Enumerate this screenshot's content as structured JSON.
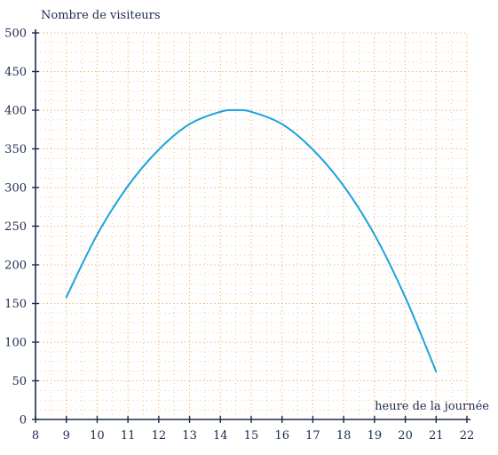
{
  "chart_data": {
    "type": "line",
    "title": "",
    "ylabel": "Nombre de visiteurs",
    "xlabel": "heure de la journée",
    "xlim": [
      8,
      22
    ],
    "ylim": [
      0,
      500
    ],
    "x_ticks": [
      8,
      9,
      10,
      11,
      12,
      13,
      14,
      15,
      16,
      17,
      18,
      19,
      20,
      21,
      22
    ],
    "y_ticks": [
      0,
      50,
      100,
      150,
      200,
      250,
      300,
      350,
      400,
      450,
      500
    ],
    "x_tick_labels": [
      "8",
      "9",
      "10",
      "11",
      "12",
      "13",
      "14",
      "15",
      "16",
      "17",
      "18",
      "19",
      "20",
      "21",
      "22"
    ],
    "y_tick_labels": [
      "0",
      "50",
      "100",
      "150",
      "200",
      "250",
      "300",
      "350",
      "400",
      "450",
      "500"
    ],
    "grid": true,
    "grid_minor_x_step": 0.5,
    "grid_minor_y_step": 12.5,
    "series": [
      {
        "x": [
          9,
          10,
          11,
          12,
          13,
          14,
          14.5,
          15,
          16,
          17,
          18,
          19,
          20,
          21
        ],
        "y": [
          158,
          239,
          302,
          349,
          382,
          398,
          400,
          398,
          382,
          349,
          302,
          239,
          158,
          62
        ],
        "color": "#1aa3dc"
      }
    ],
    "colors": {
      "axis": "#1b2a4e",
      "grid": "#f2a65a",
      "curve": "#1aa3dc"
    }
  }
}
